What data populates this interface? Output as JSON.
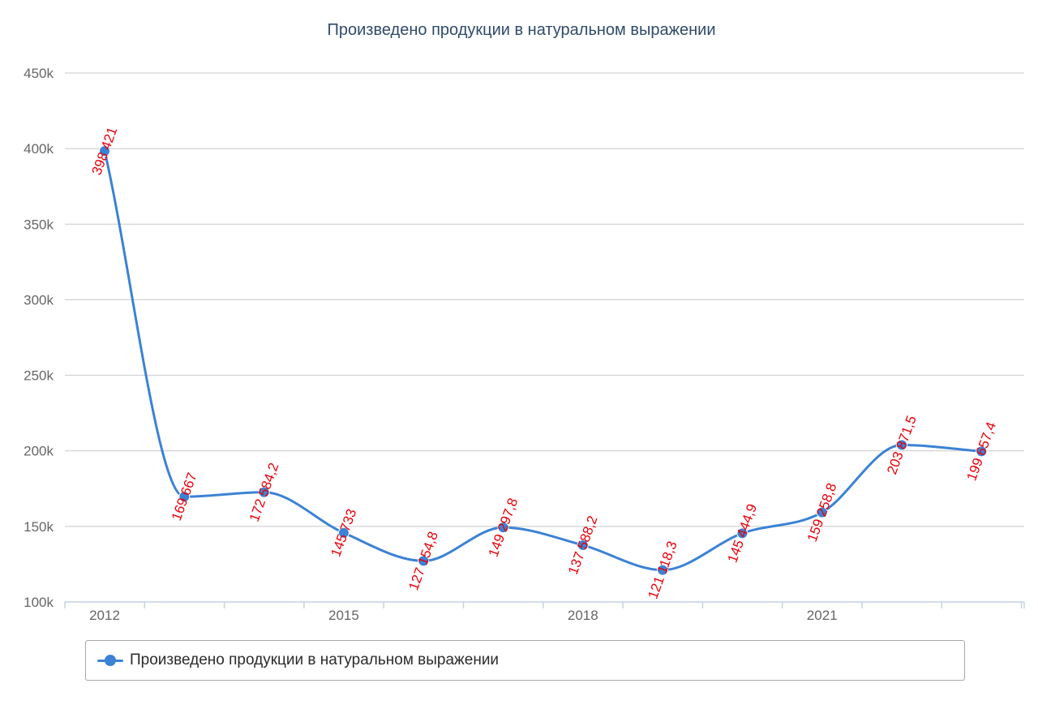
{
  "chart_data": {
    "type": "line",
    "title": "Произведено продукции в натуральном выражении",
    "xlabel": "",
    "ylabel": "",
    "x": [
      2012,
      2013,
      2014,
      2015,
      2016,
      2017,
      2018,
      2019,
      2020,
      2021,
      2022,
      2023
    ],
    "x_tick_labels": [
      "2012",
      "2015",
      "2018",
      "2021"
    ],
    "x_tick_values": [
      2012,
      2015,
      2018,
      2021
    ],
    "ylim": [
      100000,
      450000
    ],
    "y_ticks": [
      100000,
      150000,
      200000,
      250000,
      300000,
      350000,
      400000,
      450000
    ],
    "y_tick_labels": [
      "100k",
      "150k",
      "200k",
      "250k",
      "300k",
      "350k",
      "400k",
      "450k"
    ],
    "grid": true,
    "legend_position": "bottom",
    "series": [
      {
        "name": "Произведено продукции в натуральном выражении",
        "color": "#3b82d4",
        "label_color": "#e8000b",
        "values": [
          398421,
          169667,
          172584.2,
          145733,
          127154.8,
          149297.8,
          137588.2,
          121118.3,
          145444.9,
          159258.8,
          203871.5,
          199657.4
        ],
        "data_labels": [
          "398 421",
          "169 667",
          "172 584,2",
          "145 733",
          "127 154,8",
          "149 297,8",
          "137 588,2",
          "121 118,3",
          "145 444,9",
          "159 258,8",
          "203 871,5",
          "199 657,4"
        ]
      }
    ]
  }
}
